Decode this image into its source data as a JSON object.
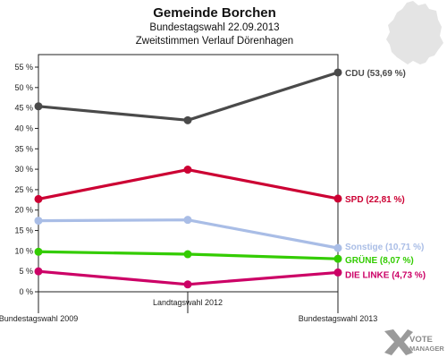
{
  "chart_data": {
    "type": "line",
    "title": "Gemeinde Borchen",
    "subtitle_1": "Bundestagswahl 22.09.2013",
    "subtitle_2": "Zweitstimmen Verlauf Dörenhagen",
    "categories": [
      "Bundestagswahl 2009",
      "Landtagswahl 2012",
      "Bundestagswahl 2013"
    ],
    "ylim": [
      0,
      55
    ],
    "y_ticks": [
      "0 %",
      "5 %",
      "10 %",
      "15 %",
      "20 %",
      "25 %",
      "30 %",
      "35 %",
      "40 %",
      "45 %",
      "50 %",
      "55 %"
    ],
    "grid": false,
    "series": [
      {
        "name": "CDU",
        "values": [
          45.4,
          42.0,
          53.69
        ],
        "color": "#4a4a4a",
        "end_label": "CDU (53,69 %)"
      },
      {
        "name": "SPD",
        "values": [
          22.7,
          29.9,
          22.81
        ],
        "color": "#cc0033",
        "end_label": "SPD (22,81 %)"
      },
      {
        "name": "Sonstige",
        "values": [
          17.4,
          17.6,
          10.71
        ],
        "color": "#a9bde6",
        "end_label": "Sonstige (10,71 %)"
      },
      {
        "name": "GRÜNE",
        "values": [
          9.8,
          9.2,
          8.07
        ],
        "color": "#33cc00",
        "end_label": "GRÜNE (8,07 %)"
      },
      {
        "name": "DIE LINKE",
        "values": [
          5.0,
          1.8,
          4.73
        ],
        "color": "#cc0066",
        "end_label": "DIE LINKE (4,73 %)"
      }
    ]
  },
  "branding": {
    "logo_line_1": "VOTE",
    "logo_line_2": "MANAGER",
    "logo_color": "#8a8a8a"
  },
  "map": {
    "color": "#e4e4e4"
  }
}
